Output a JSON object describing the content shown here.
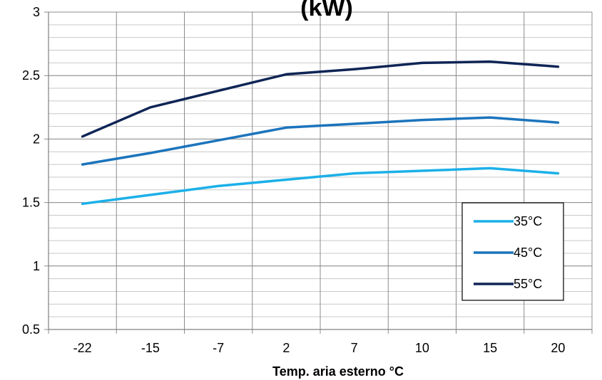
{
  "chart_data": {
    "type": "line",
    "title_fragment": "(kW)",
    "xlabel": "Temp. aria esterno °C",
    "ylabel": "",
    "categories": [
      "-22",
      "-15",
      "-7",
      "2",
      "7",
      "10",
      "15",
      "20"
    ],
    "y_ticks": [
      "0.5",
      "1",
      "1.5",
      "2",
      "2.5",
      "3"
    ],
    "ylim": [
      0.5,
      3
    ],
    "y_minor_step": 0.1,
    "grid": true,
    "legend_position": "lower-right",
    "series": [
      {
        "name": "35°C",
        "color": "#1cb0e8",
        "values": [
          1.49,
          1.56,
          1.63,
          1.68,
          1.73,
          1.75,
          1.77,
          1.73
        ]
      },
      {
        "name": "45°C",
        "color": "#1c74bc",
        "values": [
          1.8,
          1.89,
          1.99,
          2.09,
          2.12,
          2.15,
          2.17,
          2.13
        ]
      },
      {
        "name": "55°C",
        "color": "#0f2556",
        "values": [
          2.02,
          2.25,
          2.38,
          2.51,
          2.55,
          2.6,
          2.61,
          2.57
        ]
      }
    ]
  }
}
